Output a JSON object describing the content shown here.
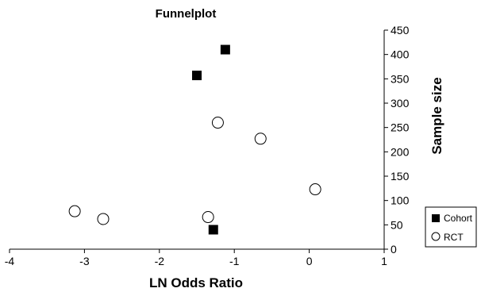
{
  "chart_data": {
    "type": "scatter",
    "title": "Funnelplot",
    "xlabel": "LN Odds Ratio",
    "ylabel": "Sample size",
    "xlim": [
      -4,
      1
    ],
    "ylim": [
      0,
      450
    ],
    "xticks": [
      -4,
      -3,
      -2,
      -1,
      0,
      1
    ],
    "yticks": [
      0,
      50,
      100,
      150,
      200,
      250,
      300,
      350,
      400,
      450
    ],
    "grid": false,
    "legend": "bottom-right",
    "series": [
      {
        "name": "Cohort",
        "marker": "filled-square",
        "color": "#000000",
        "points": [
          {
            "x": -1.12,
            "y": 410
          },
          {
            "x": -1.5,
            "y": 357
          },
          {
            "x": -1.28,
            "y": 40
          }
        ]
      },
      {
        "name": "RCT",
        "marker": "open-circle",
        "color": "#000000",
        "points": [
          {
            "x": -1.22,
            "y": 260
          },
          {
            "x": -0.65,
            "y": 227
          },
          {
            "x": 0.08,
            "y": 123
          },
          {
            "x": -3.13,
            "y": 78
          },
          {
            "x": -2.75,
            "y": 62
          },
          {
            "x": -1.35,
            "y": 66
          }
        ]
      }
    ]
  }
}
